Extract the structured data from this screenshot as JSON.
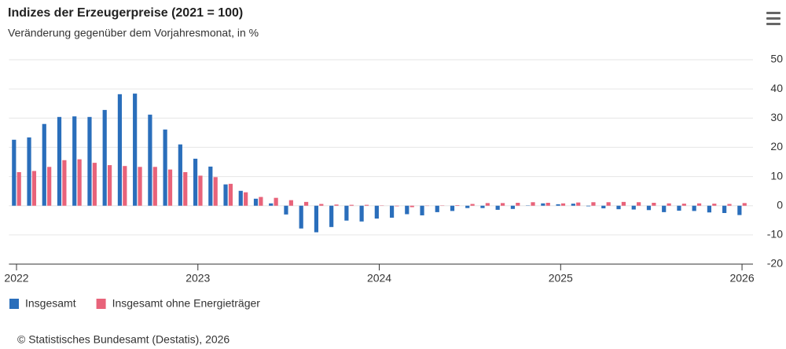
{
  "chart_data": {
    "type": "bar",
    "title": "Indizes der Erzeugerpreise (2021 = 100)",
    "subtitle": "Veränderung gegenüber dem Vorjahresmonat, in %",
    "source": "© Statistisches Bundesamt (Destatis), 2026",
    "categories": [
      "2022",
      null,
      null,
      null,
      null,
      null,
      null,
      null,
      null,
      null,
      null,
      null,
      "2023",
      null,
      null,
      null,
      null,
      null,
      null,
      null,
      null,
      null,
      null,
      null,
      "2024",
      null,
      null,
      null,
      null,
      null,
      null,
      null,
      null,
      null,
      null,
      null,
      "2025",
      null,
      null,
      null,
      null,
      null,
      null,
      null,
      null,
      null,
      null,
      null,
      "2026"
    ],
    "series": [
      {
        "name": "Insgesamt",
        "color": "#2a6ebb",
        "values": [
          22.6,
          23.4,
          28.0,
          30.4,
          30.6,
          30.4,
          32.8,
          38.2,
          38.4,
          31.2,
          26.1,
          21.0,
          16.1,
          13.4,
          7.3,
          5.1,
          2.4,
          0.8,
          -3.0,
          -7.8,
          -9.1,
          -7.3,
          -5.1,
          -5.4,
          -4.4,
          -4.1,
          -2.9,
          -3.3,
          -2.2,
          -1.8,
          -0.8,
          -0.8,
          -1.4,
          -1.1,
          0.1,
          0.8,
          0.5,
          0.7,
          -0.2,
          -0.9,
          -1.2,
          -1.3,
          -1.5,
          -2.2,
          -1.7,
          -1.8,
          -2.3,
          -2.5,
          -3.2
        ]
      },
      {
        "name": "Insgesamt ohne Energieträger",
        "color": "#e8637a",
        "values": [
          11.5,
          11.9,
          13.3,
          15.6,
          15.9,
          14.7,
          13.9,
          13.6,
          13.3,
          13.3,
          12.4,
          11.5,
          10.3,
          9.8,
          7.5,
          4.6,
          3.0,
          2.7,
          1.9,
          1.3,
          0.6,
          0.4,
          0.3,
          0.3,
          0.1,
          -0.2,
          -0.5,
          -0.1,
          0.1,
          0.2,
          0.6,
          0.9,
          0.9,
          1.0,
          1.2,
          1.0,
          0.8,
          1.1,
          1.2,
          1.2,
          1.3,
          1.2,
          1.0,
          0.8,
          0.7,
          0.8,
          0.7,
          0.6,
          0.9
        ]
      }
    ],
    "ylim": [
      -20,
      50
    ],
    "yticks": [
      -20,
      -10,
      0,
      10,
      20,
      30,
      40,
      50
    ],
    "grid": true,
    "legend": "bottom-left"
  }
}
